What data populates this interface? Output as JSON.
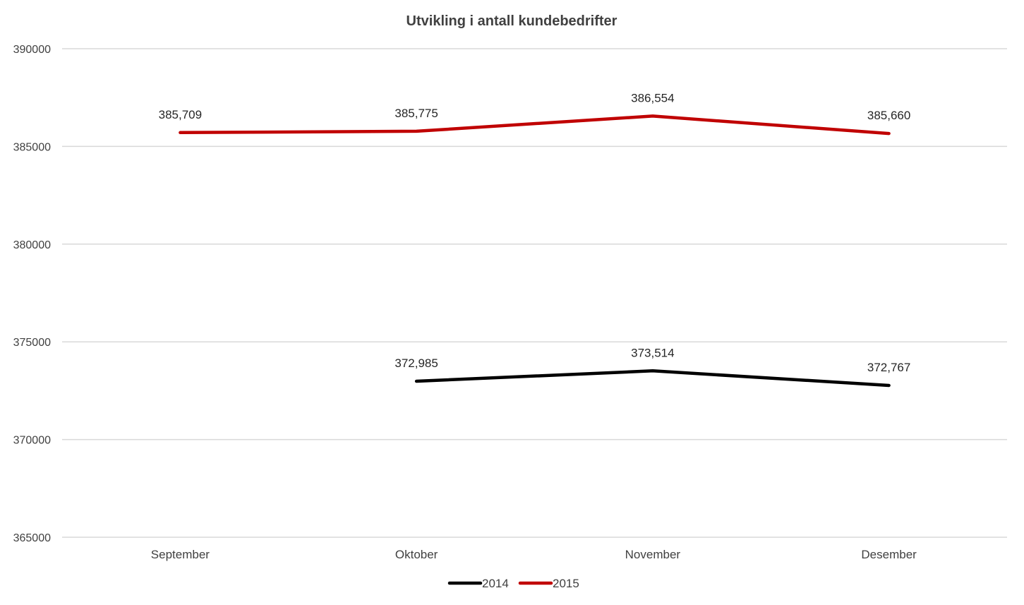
{
  "chart_data": {
    "type": "line",
    "title": "Utvikling i antall kundebedrifter",
    "categories": [
      "September",
      "Oktober",
      "November",
      "Desember"
    ],
    "ylim": [
      365000,
      390000
    ],
    "yticks": [
      365000,
      370000,
      375000,
      380000,
      385000,
      390000
    ],
    "ytick_labels": [
      "365000",
      "370000",
      "375000",
      "380000",
      "385000",
      "390000"
    ],
    "grid": true,
    "legend_position": "bottom",
    "series": [
      {
        "name": "2014",
        "color": "#000000",
        "values": [
          null,
          372985,
          373514,
          372767
        ],
        "labels": [
          "",
          "372,985",
          "373,514",
          "372,767"
        ]
      },
      {
        "name": "2015",
        "color": "#c00000",
        "values": [
          385709,
          385775,
          386554,
          385660
        ],
        "labels": [
          "385,709",
          "385,775",
          "386,554",
          "385,660"
        ]
      }
    ]
  }
}
